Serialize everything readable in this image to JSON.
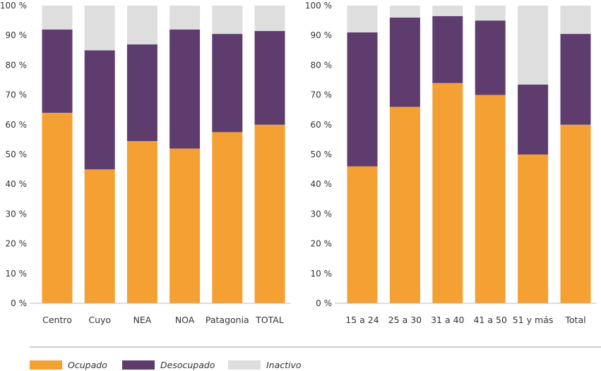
{
  "chart_data": [
    {
      "type": "bar",
      "stacked": true,
      "categories": [
        "Centro",
        "Cuyo",
        "NEA",
        "NOA",
        "Patagonia",
        "TOTAL"
      ],
      "series": [
        {
          "name": "Ocupado",
          "values": [
            64,
            45,
            54.5,
            52,
            57.5,
            60
          ]
        },
        {
          "name": "Desocupado",
          "values": [
            28,
            40,
            32.5,
            40,
            33,
            31.5
          ]
        },
        {
          "name": "Inactivo",
          "values": [
            8,
            15,
            13,
            8,
            9.5,
            8.5
          ]
        }
      ],
      "ylim": [
        0,
        100
      ],
      "yticks": [
        "0 %",
        "10 %",
        "20 %",
        "30 %",
        "40 %",
        "50 %",
        "60 %",
        "70 %",
        "80 %",
        "90 %",
        "100 %"
      ]
    },
    {
      "type": "bar",
      "stacked": true,
      "categories": [
        "15 a 24",
        "25 a 30",
        "31 a 40",
        "41 a 50",
        "51 y más",
        "Total"
      ],
      "series": [
        {
          "name": "Ocupado",
          "values": [
            46,
            66,
            74,
            70,
            50,
            60
          ]
        },
        {
          "name": "Desocupado",
          "values": [
            45,
            30,
            22.5,
            25,
            23.5,
            30.5
          ]
        },
        {
          "name": "Inactivo",
          "values": [
            9,
            4,
            3.5,
            5,
            26.5,
            9.5
          ]
        }
      ],
      "ylim": [
        0,
        100
      ],
      "yticks": [
        "0 %",
        "10 %",
        "20 %",
        "30 %",
        "40 %",
        "50 %",
        "60 %",
        "70 %",
        "80 %",
        "90 %",
        "100 %"
      ]
    }
  ],
  "colors": {
    "Ocupado": "#f5a033",
    "Desocupado": "#5e3d6e",
    "Inactivo": "#dedede"
  },
  "legend": {
    "position": "bottom-left",
    "items": [
      {
        "label": "Ocupado",
        "color": "#f5a033"
      },
      {
        "label": "Desocupado",
        "color": "#5e3d6e"
      },
      {
        "label": "Inactivo",
        "color": "#dedede"
      }
    ]
  }
}
